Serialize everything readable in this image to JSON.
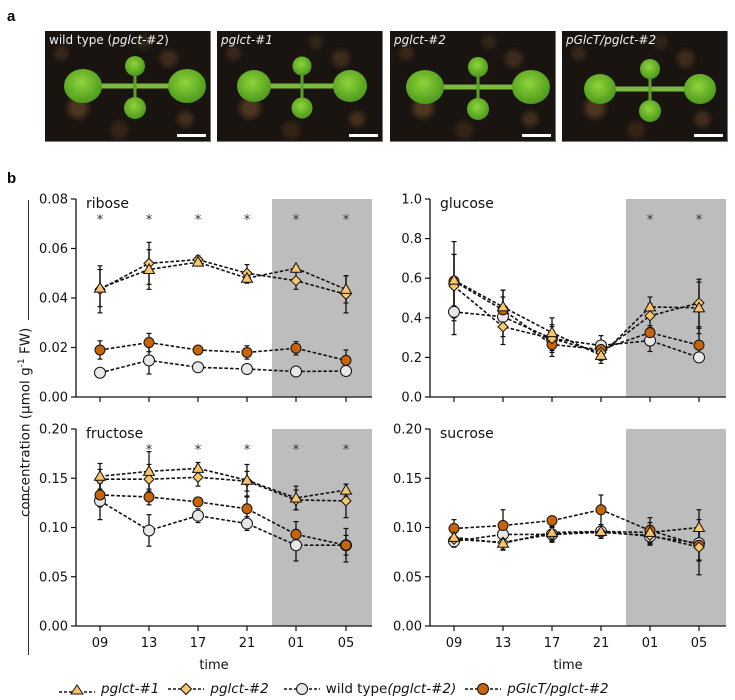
{
  "panels": {
    "a_label": "a",
    "b_label": "b"
  },
  "photos": [
    {
      "caption_plain": "wild type (",
      "caption_italic": "pglct-#2",
      "caption_tail": ")",
      "has_scalebar": true
    },
    {
      "caption_plain": "",
      "caption_italic": "pglct-#1",
      "caption_tail": "",
      "has_scalebar": true
    },
    {
      "caption_plain": "",
      "caption_italic": "pglct-#2",
      "caption_tail": "",
      "has_scalebar": true
    },
    {
      "caption_plain": "",
      "caption_italic": "pGlcT/pglct-#2",
      "caption_tail": "",
      "has_scalebar": true
    }
  ],
  "ylabel": {
    "text": "concentration (µmol g",
    "sup": "-1",
    "tail": " FW)"
  },
  "legend": [
    {
      "key": "pglct1",
      "plain": "",
      "italic": "pglct-#1",
      "marker": "triangle",
      "fill": "#F9C46B"
    },
    {
      "key": "pglct2",
      "plain": "",
      "italic": "pglct-#2",
      "marker": "diamond",
      "fill": "#F7C76A"
    },
    {
      "key": "wt",
      "plain": "wild type ",
      "italic": "(pglct-#2)",
      "marker": "circle",
      "fill": "#E8E8E8"
    },
    {
      "key": "comp",
      "plain": "",
      "italic": "pGlcT/pglct-#2",
      "marker": "circle",
      "fill": "#C86408"
    }
  ],
  "colors": {
    "night_shading": "#BDBDBD",
    "pglct1": "#F9C46B",
    "pglct2": "#F7C76A",
    "wt": "#E8E8E8",
    "comp": "#C86408"
  },
  "chart_data": [
    {
      "type": "line",
      "title": "ribose",
      "xlabel": "",
      "ylabel": "concentration (µmol g-1 FW)",
      "categories": [
        "09",
        "13",
        "17",
        "21",
        "01",
        "05"
      ],
      "show_xticklabels": false,
      "yticks": [
        "0.08",
        "0.06",
        "0.04",
        "0.02",
        "0.00"
      ],
      "ylim": [
        0,
        0.08
      ],
      "night_from_index": 4,
      "significance": [
        "*",
        "*",
        "*",
        "*",
        "*",
        "*"
      ],
      "series": [
        {
          "name": "pglct-#1",
          "key": "pglct1",
          "values": [
            0.044,
            0.0515,
            0.0545,
            0.048,
            0.052,
            0.0435
          ],
          "err": [
            0.0075,
            0.008,
            0.001,
            0.002,
            0.001,
            0.0055
          ]
        },
        {
          "name": "pglct-#2",
          "key": "pglct2",
          "values": [
            0.0435,
            0.054,
            0.0555,
            0.05,
            0.047,
            0.0415
          ],
          "err": [
            0.0095,
            0.0085,
            0.0015,
            0.0035,
            0.0035,
            0.0075
          ]
        },
        {
          "name": "wild type (pglct-#2)",
          "key": "wt",
          "values": [
            0.0098,
            0.0148,
            0.012,
            0.0113,
            0.0103,
            0.0105
          ],
          "err": [
            0.0005,
            0.0055,
            0.0005,
            0.0008,
            0.0005,
            0.0005
          ]
        },
        {
          "name": "pGlcT/pglct-#2",
          "key": "comp",
          "values": [
            0.019,
            0.022,
            0.019,
            0.018,
            0.0197,
            0.0148
          ],
          "err": [
            0.0037,
            0.0037,
            0.001,
            0.0027,
            0.0027,
            0.0042
          ]
        }
      ]
    },
    {
      "type": "line",
      "title": "glucose",
      "xlabel": "",
      "ylabel": "",
      "categories": [
        "09",
        "13",
        "17",
        "21",
        "01",
        "05"
      ],
      "show_xticklabels": false,
      "yticks": [
        "1.0",
        "0.8",
        "0.6",
        "0.4",
        "0.2",
        "0.0"
      ],
      "ylim": [
        0,
        1.0
      ],
      "night_from_index": 4,
      "significance": [
        "",
        "",
        "",
        "",
        "*",
        "*"
      ],
      "series": [
        {
          "name": "pglct-#1",
          "key": "pglct1",
          "values": [
            0.59,
            0.455,
            0.325,
            0.21,
            0.455,
            0.45
          ],
          "err": [
            0.13,
            0.085,
            0.075,
            0.04,
            0.05,
            0.13
          ]
        },
        {
          "name": "pglct-#2",
          "key": "pglct2",
          "values": [
            0.56,
            0.355,
            0.295,
            0.225,
            0.41,
            0.475
          ],
          "err": [
            0.16,
            0.09,
            0.07,
            0.04,
            0.06,
            0.12
          ]
        },
        {
          "name": "wild type (pglct-#2)",
          "key": "wt",
          "values": [
            0.43,
            0.405,
            0.295,
            0.26,
            0.285,
            0.2
          ],
          "err": [
            0.115,
            0.1,
            0.06,
            0.05,
            0.055,
            0.025
          ]
        },
        {
          "name": "pGlcT/pglct-#2",
          "key": "comp",
          "values": [
            0.585,
            0.44,
            0.265,
            0.24,
            0.325,
            0.262
          ],
          "err": [
            0.2,
            0.1,
            0.06,
            0.045,
            0.035,
            0.085
          ]
        }
      ]
    },
    {
      "type": "line",
      "title": "fructose",
      "xlabel": "time",
      "ylabel": "concentration (µmol g-1 FW)",
      "categories": [
        "09",
        "13",
        "17",
        "21",
        "01",
        "05"
      ],
      "show_xticklabels": true,
      "yticks": [
        "0.20",
        "0.15",
        "0.10",
        "0.05",
        "0.00"
      ],
      "ylim": [
        0,
        0.2
      ],
      "night_from_index": 4,
      "significance": [
        "",
        "*",
        "*",
        "*",
        "*",
        "*"
      ],
      "series": [
        {
          "name": "pglct-#1",
          "key": "pglct1",
          "values": [
            0.152,
            0.157,
            0.16,
            0.148,
            0.13,
            0.138
          ],
          "err": [
            0.013,
            0.02,
            0.006,
            0.016,
            0.012,
            0.006
          ]
        },
        {
          "name": "pglct-#2",
          "key": "pglct2",
          "values": [
            0.149,
            0.149,
            0.151,
            0.147,
            0.128,
            0.127
          ],
          "err": [
            0.01,
            0.015,
            0.009,
            0.01,
            0.01,
            0.017
          ]
        },
        {
          "name": "wild type (pglct-#2)",
          "key": "wt",
          "values": [
            0.127,
            0.097,
            0.112,
            0.104,
            0.082,
            0.082
          ],
          "err": [
            0.019,
            0.016,
            0.007,
            0.007,
            0.016,
            0.017
          ]
        },
        {
          "name": "pGlcT/pglct-#2",
          "key": "comp",
          "values": [
            0.133,
            0.131,
            0.126,
            0.119,
            0.093,
            0.082
          ],
          "err": [
            0.012,
            0.008,
            0.003,
            0.012,
            0.013,
            0.01
          ]
        }
      ]
    },
    {
      "type": "line",
      "title": "sucrose",
      "xlabel": "time",
      "ylabel": "",
      "categories": [
        "09",
        "13",
        "17",
        "21",
        "01",
        "05"
      ],
      "show_xticklabels": true,
      "yticks": [
        "0.20",
        "0.15",
        "0.10",
        "0.05",
        "0.00"
      ],
      "ylim": [
        0,
        0.2
      ],
      "night_from_index": 4,
      "significance": [
        "",
        "",
        "",
        "",
        "",
        ""
      ],
      "series": [
        {
          "name": "pglct-#1",
          "key": "pglct1",
          "values": [
            0.09,
            0.084,
            0.095,
            0.096,
            0.095,
            0.1
          ],
          "err": [
            0.006,
            0.007,
            0.008,
            0.005,
            0.01,
            0.018
          ]
        },
        {
          "name": "pglct-#2",
          "key": "pglct2",
          "values": [
            0.088,
            0.085,
            0.093,
            0.095,
            0.092,
            0.08
          ],
          "err": [
            0.006,
            0.007,
            0.007,
            0.006,
            0.01,
            0.028
          ]
        },
        {
          "name": "wild type (pglct-#2)",
          "key": "wt",
          "values": [
            0.086,
            0.093,
            0.093,
            0.096,
            0.091,
            0.084
          ],
          "err": [
            0.006,
            0.006,
            0.008,
            0.007,
            0.008,
            0.017
          ]
        },
        {
          "name": "pGlcT/pglct-#2",
          "key": "comp",
          "values": [
            0.099,
            0.102,
            0.107,
            0.118,
            0.097,
            0.082
          ],
          "err": [
            0.009,
            0.016,
            0.004,
            0.015,
            0.013,
            0.016
          ]
        }
      ]
    }
  ]
}
